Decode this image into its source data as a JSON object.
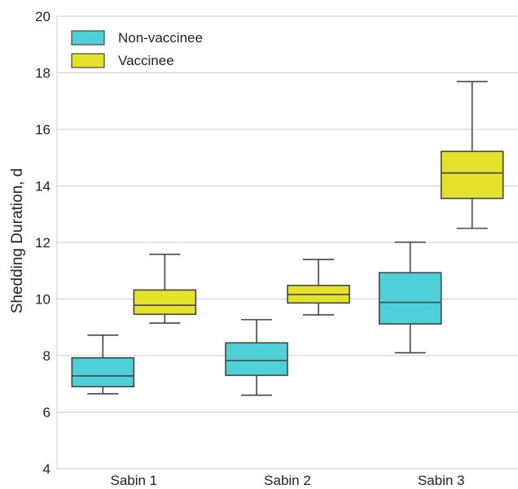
{
  "chart_data": {
    "type": "box",
    "title": "",
    "xlabel": "",
    "ylabel": "Shedding Duration, d",
    "ylim": [
      4,
      20
    ],
    "yticks": [
      4,
      6,
      8,
      10,
      12,
      14,
      16,
      18,
      20
    ],
    "categories": [
      "Sabin 1",
      "Sabin 2",
      "Sabin 3"
    ],
    "grid": "horizontal",
    "legend_position": "top-left",
    "series": [
      {
        "name": "Non-vaccinee",
        "color": "#4fd0d8",
        "boxes": [
          {
            "whisker_low": 6.65,
            "q1": 6.9,
            "median": 7.28,
            "q3": 7.92,
            "whisker_high": 8.72
          },
          {
            "whisker_low": 6.6,
            "q1": 7.3,
            "median": 7.82,
            "q3": 8.45,
            "whisker_high": 9.27
          },
          {
            "whisker_low": 8.1,
            "q1": 9.12,
            "median": 9.88,
            "q3": 10.93,
            "whisker_high": 12.01
          }
        ]
      },
      {
        "name": "Vaccinee",
        "color": "#e4e22a",
        "boxes": [
          {
            "whisker_low": 9.15,
            "q1": 9.46,
            "median": 9.78,
            "q3": 10.32,
            "whisker_high": 11.58
          },
          {
            "whisker_low": 9.44,
            "q1": 9.86,
            "median": 10.16,
            "q3": 10.48,
            "whisker_high": 11.4
          },
          {
            "whisker_low": 12.5,
            "q1": 13.56,
            "median": 14.46,
            "q3": 15.22,
            "whisker_high": 17.69
          }
        ]
      }
    ]
  }
}
